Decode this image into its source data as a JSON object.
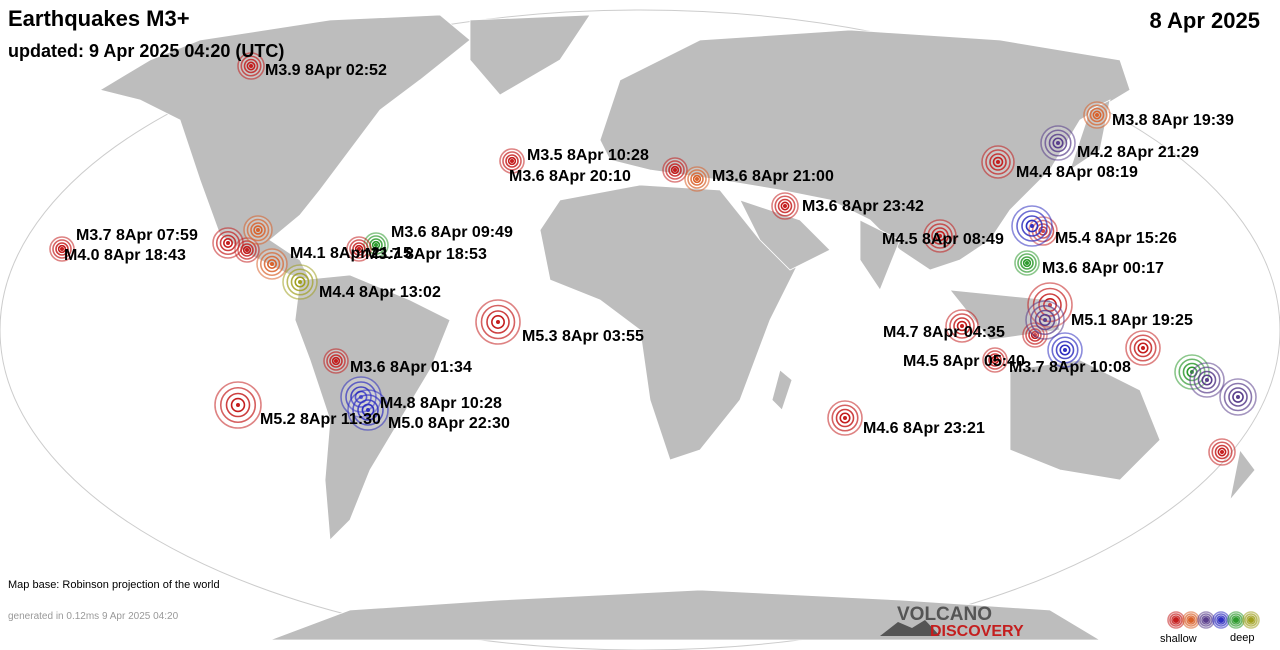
{
  "header": {
    "title": "Earthquakes M3+",
    "date": "8 Apr 2025",
    "updated": "updated:  9 Apr 2025 04:20 (UTC)"
  },
  "quakes": [
    {
      "label": "M3.9  8Apr 02:52",
      "color": "#c41e1e"
    },
    {
      "label": "M3.8  8Apr 19:39",
      "color": "#d9622b"
    },
    {
      "label": "M4.2  8Apr 21:29",
      "color": "#5a3f8c"
    },
    {
      "label": "M4.4  8Apr 08:19",
      "color": "#c41e1e"
    },
    {
      "label": "M3.5  8Apr 10:28",
      "color": "#c41e1e"
    },
    {
      "label": "M3.6  8Apr 20:10",
      "color": "#c41e1e"
    },
    {
      "label": "M3.6  8Apr 21:00",
      "color": "#d9622b"
    },
    {
      "label": "M3.6  8Apr 23:42",
      "color": "#c41e1e"
    },
    {
      "label": "M4.5  8Apr 08:49",
      "color": "#c41e1e"
    },
    {
      "label": "M5.4  8Apr 15:26",
      "color": "#3030c0"
    },
    {
      "label": "M3.6  8Apr 00:17",
      "color": "#2e9a2e"
    },
    {
      "label": "M3.7  8Apr 07:59",
      "color": "#c41e1e"
    },
    {
      "label": "M4.0  8Apr 18:43",
      "color": "#c41e1e"
    },
    {
      "label": "M3.6  8Apr 09:49",
      "color": "#2e9a2e"
    },
    {
      "label": "M4.1  8Apr 21:15",
      "color": "#d9622b"
    },
    {
      "label": "M3.7  8Apr 18:53",
      "color": "#c41e1e"
    },
    {
      "label": "M4.4  8Apr 13:02",
      "color": "#a0a020"
    },
    {
      "label": "M5.3  8Apr 03:55",
      "color": "#c41e1e"
    },
    {
      "label": "M3.6  8Apr 01:34",
      "color": "#c41e1e"
    },
    {
      "label": "M4.8  8Apr 10:28",
      "color": "#3030c0"
    },
    {
      "label": "M5.0  8Apr 22:30",
      "color": "#3030c0"
    },
    {
      "label": "M5.2  8Apr 11:30",
      "color": "#c41e1e"
    },
    {
      "label": "M4.6  8Apr 23:21",
      "color": "#c41e1e"
    },
    {
      "label": "M4.7  8Apr 04:35",
      "color": "#c41e1e"
    },
    {
      "label": "M5.1  8Apr 19:25",
      "color": "#5a3f8c"
    },
    {
      "label": "M4.5  8Apr 05:40",
      "color": "#c41e1e"
    },
    {
      "label": "M3.7  8Apr 10:08",
      "color": "#3030c0"
    }
  ],
  "footer": {
    "map_base": "Map base: Robinson projection of the world",
    "generated": "generated in 0.12ms  9 Apr 2025 04:20",
    "logo_top": "VOLCANO",
    "logo_bottom": "DISCOVERY",
    "legend_shallow": "shallow",
    "legend_deep": "deep"
  }
}
